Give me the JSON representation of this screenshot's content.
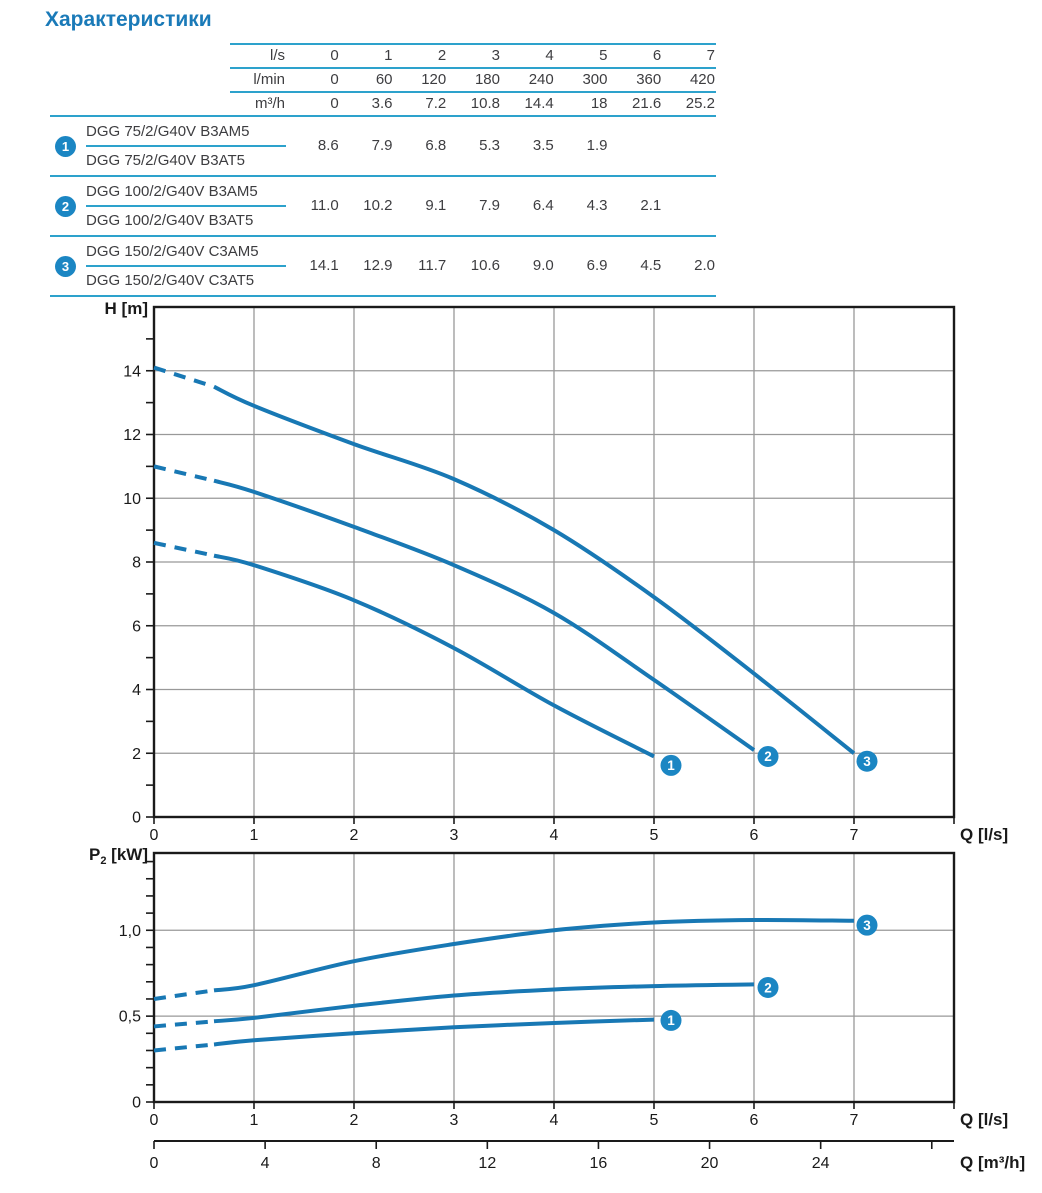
{
  "title": "Характеристики",
  "colors": {
    "accent_title": "#1a7ab8",
    "table_rule": "#2da2cc",
    "badge_fill": "#1b86c3",
    "curve": "#1878b4",
    "grid": "#999999",
    "frame": "#1a1a1a",
    "text": "#3d3d40"
  },
  "table": {
    "header_rows": [
      {
        "label": "l/s",
        "values": [
          "0",
          "1",
          "2",
          "3",
          "4",
          "5",
          "6",
          "7"
        ]
      },
      {
        "label": "l/min",
        "values": [
          "0",
          "60",
          "120",
          "180",
          "240",
          "300",
          "360",
          "420"
        ]
      },
      {
        "label": "m³/h",
        "values": [
          "0",
          "3.6",
          "7.2",
          "10.8",
          "14.4",
          "18",
          "21.6",
          "25.2"
        ]
      }
    ],
    "groups": [
      {
        "badge": "1",
        "model_a": "DGG 75/2/G40V B3AM5",
        "model_b": "DGG 75/2/G40V B3AT5",
        "values": [
          "8.6",
          "7.9",
          "6.8",
          "5.3",
          "3.5",
          "1.9",
          "",
          ""
        ]
      },
      {
        "badge": "2",
        "model_a": "DGG 100/2/G40V B3AM5",
        "model_b": "DGG 100/2/G40V B3AT5",
        "values": [
          "11.0",
          "10.2",
          "9.1",
          "7.9",
          "6.4",
          "4.3",
          "2.1",
          ""
        ]
      },
      {
        "badge": "3",
        "model_a": "DGG 150/2/G40V C3AM5",
        "model_b": "DGG 150/2/G40V C3AT5",
        "values": [
          "14.1",
          "12.9",
          "11.7",
          "10.6",
          "9.0",
          "6.9",
          "4.5",
          "2.0"
        ]
      }
    ]
  },
  "chart_data": [
    {
      "type": "line",
      "name": "head-curves",
      "ylabel": {
        "base": "H",
        "sub": "",
        "unit": " [m]"
      },
      "xlabel": "Q [l/s]",
      "xlim": [
        0,
        8
      ],
      "ylim": [
        0,
        16
      ],
      "x_axis": {
        "ticks": [
          0,
          1,
          2,
          3,
          4,
          5,
          6,
          7,
          8
        ],
        "labels": [
          {
            "v": 0,
            "t": "0"
          },
          {
            "v": 1,
            "t": "1"
          },
          {
            "v": 2,
            "t": "2"
          },
          {
            "v": 3,
            "t": "3"
          },
          {
            "v": 4,
            "t": "4"
          },
          {
            "v": 5,
            "t": "5"
          },
          {
            "v": 6,
            "t": "6"
          },
          {
            "v": 7,
            "t": "7"
          }
        ]
      },
      "y_axis": {
        "ticks": [
          0,
          1,
          2,
          3,
          4,
          5,
          6,
          7,
          8,
          9,
          10,
          11,
          12,
          13,
          14,
          15
        ],
        "labels": [
          {
            "v": 0,
            "t": "0"
          },
          {
            "v": 2,
            "t": "2"
          },
          {
            "v": 4,
            "t": "4"
          },
          {
            "v": 6,
            "t": "6"
          },
          {
            "v": 8,
            "t": "8"
          },
          {
            "v": 10,
            "t": "10"
          },
          {
            "v": 12,
            "t": "12"
          },
          {
            "v": 14,
            "t": "14"
          }
        ]
      },
      "grid": {
        "x": [
          1,
          2,
          3,
          4,
          5,
          6,
          7
        ],
        "y": [
          2,
          4,
          6,
          8,
          10,
          12,
          14
        ]
      },
      "series": [
        {
          "name": "1",
          "solid_from": 1,
          "x": [
            0,
            0.6,
            1,
            2,
            3,
            4,
            5
          ],
          "y": [
            8.6,
            8.2,
            7.9,
            6.8,
            5.3,
            3.5,
            1.9
          ],
          "badge": {
            "x": 5.17,
            "y": 1.62
          }
        },
        {
          "name": "2",
          "solid_from": 1,
          "x": [
            0,
            0.6,
            1,
            2,
            3,
            4,
            5,
            6
          ],
          "y": [
            11.0,
            10.55,
            10.2,
            9.1,
            7.9,
            6.4,
            4.3,
            2.1
          ],
          "badge": {
            "x": 6.14,
            "y": 1.9
          }
        },
        {
          "name": "3",
          "solid_from": 1,
          "x": [
            0,
            0.6,
            1,
            2,
            3,
            4,
            5,
            6,
            7
          ],
          "y": [
            14.1,
            13.5,
            12.9,
            11.7,
            10.6,
            9.0,
            6.9,
            4.5,
            2.0
          ],
          "badge": {
            "x": 7.13,
            "y": 1.75
          }
        }
      ]
    },
    {
      "type": "line",
      "name": "power-curves",
      "ylabel": {
        "base": "P",
        "sub": "2",
        "unit": " [kW]"
      },
      "xlabel": "Q [l/s]",
      "xlim": [
        0,
        8
      ],
      "ylim": [
        0,
        1.45
      ],
      "x_axis": {
        "ticks": [
          0,
          1,
          2,
          3,
          4,
          5,
          6,
          7,
          8
        ],
        "labels": [
          {
            "v": 0,
            "t": "0"
          },
          {
            "v": 1,
            "t": "1"
          },
          {
            "v": 2,
            "t": "2"
          },
          {
            "v": 3,
            "t": "3"
          },
          {
            "v": 4,
            "t": "4"
          },
          {
            "v": 5,
            "t": "5"
          },
          {
            "v": 6,
            "t": "6"
          },
          {
            "v": 7,
            "t": "7"
          }
        ]
      },
      "y_axis": {
        "ticks": [
          0,
          0.1,
          0.2,
          0.3,
          0.4,
          0.5,
          0.6,
          0.7,
          0.8,
          0.9,
          1.0,
          1.1,
          1.2,
          1.3,
          1.4
        ],
        "labels": [
          {
            "v": 0,
            "t": "0"
          },
          {
            "v": 0.5,
            "t": "0,5"
          },
          {
            "v": 1.0,
            "t": "1,0"
          }
        ]
      },
      "grid": {
        "x": [
          1,
          2,
          3,
          4,
          5,
          6,
          7
        ],
        "y": [
          0.5,
          1.0
        ]
      },
      "series": [
        {
          "name": "1",
          "solid_from": 1,
          "x": [
            0,
            0.6,
            1,
            2,
            3,
            4,
            5
          ],
          "y": [
            0.3,
            0.335,
            0.36,
            0.4,
            0.435,
            0.46,
            0.48
          ],
          "badge": {
            "x": 5.17,
            "y": 0.475
          }
        },
        {
          "name": "2",
          "solid_from": 1,
          "x": [
            0,
            0.6,
            1,
            2,
            3,
            4,
            5,
            6
          ],
          "y": [
            0.44,
            0.47,
            0.49,
            0.56,
            0.62,
            0.655,
            0.675,
            0.685
          ],
          "badge": {
            "x": 6.14,
            "y": 0.667
          }
        },
        {
          "name": "3",
          "solid_from": 1,
          "x": [
            0,
            0.6,
            1,
            2,
            3,
            4,
            5,
            6,
            7
          ],
          "y": [
            0.6,
            0.65,
            0.68,
            0.82,
            0.92,
            1.0,
            1.045,
            1.06,
            1.055
          ],
          "badge": {
            "x": 7.13,
            "y": 1.03
          }
        }
      ],
      "secondary_x_axis": {
        "axis_label": "Q [m³/h]",
        "per_primary_unit": 3.6,
        "tick_values": [
          0,
          4,
          8,
          12,
          16,
          20,
          24
        ],
        "unlabeled_tick_values": [
          28
        ]
      }
    }
  ]
}
